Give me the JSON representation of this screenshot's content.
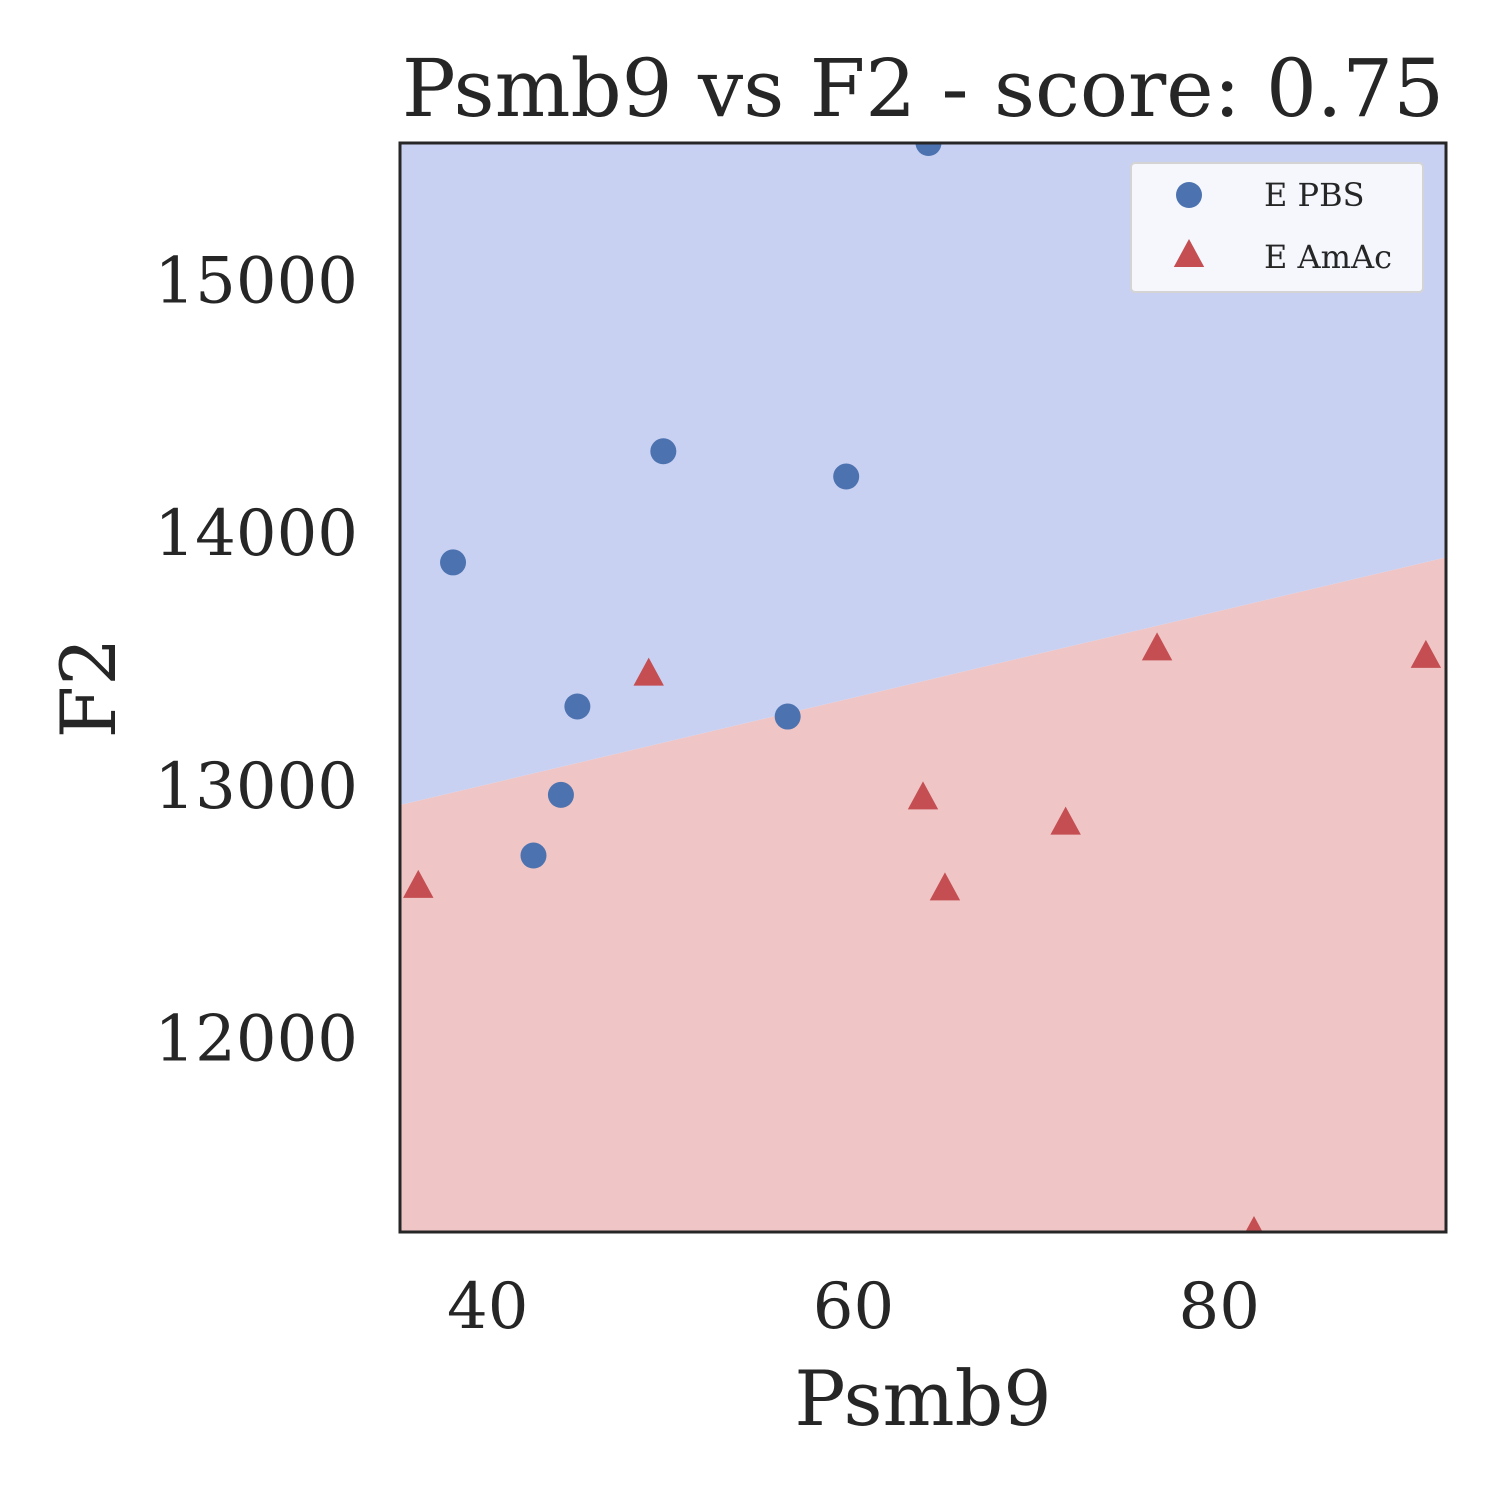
{
  "chart_data": {
    "type": "scatter",
    "title": "Psmb9 vs F2 - score: 0.75",
    "xlabel": "Psmb9",
    "ylabel": "F2",
    "xlim": [
      35.2,
      92.4
    ],
    "ylim": [
      11230,
      15540
    ],
    "xticks": [
      40,
      60,
      80
    ],
    "yticks": [
      12000,
      13000,
      14000,
      15000
    ],
    "grid": false,
    "legend_position": "top-right",
    "decision_boundary": {
      "x": [
        35.2,
        92.4
      ],
      "y": [
        12920,
        13900
      ],
      "region_above": "E PBS",
      "region_below": "E AmAc"
    },
    "series": [
      {
        "name": "E PBS",
        "marker": "circle",
        "color": "#4c72b0",
        "region_color": "#c9d1f2",
        "points": [
          [
            38.1,
            13880
          ],
          [
            42.5,
            12720
          ],
          [
            44.0,
            12960
          ],
          [
            44.9,
            13310
          ],
          [
            49.6,
            14320
          ],
          [
            56.4,
            13270
          ],
          [
            59.6,
            14220
          ],
          [
            64.1,
            15540
          ]
        ]
      },
      {
        "name": "E AmAc",
        "marker": "triangle",
        "color": "#c44e52",
        "region_color": "#efc5c5",
        "points": [
          [
            36.2,
            12600
          ],
          [
            48.8,
            13440
          ],
          [
            63.8,
            12950
          ],
          [
            65.0,
            12590
          ],
          [
            71.6,
            12850
          ],
          [
            76.6,
            13540
          ],
          [
            81.9,
            11230
          ],
          [
            91.3,
            13510
          ]
        ]
      }
    ]
  }
}
